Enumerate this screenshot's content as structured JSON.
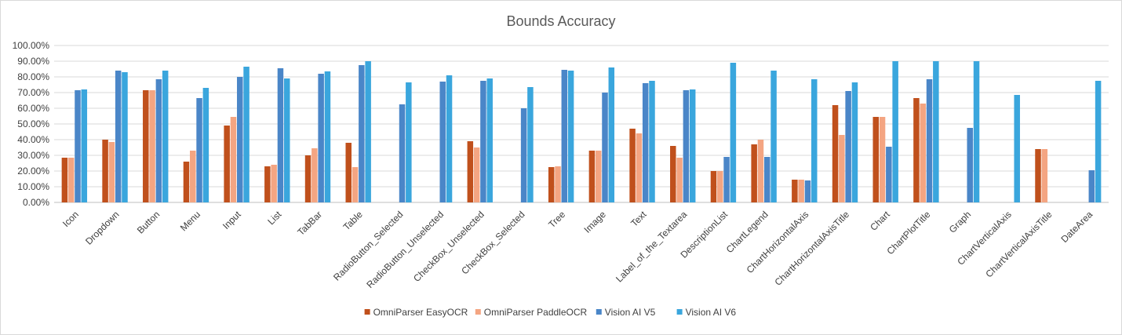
{
  "chart_data": {
    "type": "bar",
    "title": "Bounds Accuracy",
    "xlabel": "",
    "ylabel": "",
    "ylim": [
      0,
      100
    ],
    "yticks": [
      "0.00%",
      "10.00%",
      "20.00%",
      "30.00%",
      "40.00%",
      "50.00%",
      "60.00%",
      "70.00%",
      "80.00%",
      "90.00%",
      "100.00%"
    ],
    "grid": true,
    "legend_position": "bottom",
    "categories": [
      "Icon",
      "Dropdown",
      "Button",
      "Menu",
      "Input",
      "List",
      "TabBar",
      "Table",
      "RadioButton_Selected",
      "RadioButton_Unselected",
      "CheckBox_Unselected",
      "CheckBox_Selected",
      "Tree",
      "Image",
      "Text",
      "Label_of_the_Textarea",
      "DescriptionList",
      "ChartLegend",
      "ChartHorizontalAxis",
      "ChartHorizontalAxisTitle",
      "Chart",
      "ChartPlotTitle",
      "Graph",
      "ChartVerticalAxis",
      "ChartVerticalAxisTitle",
      "DateArea"
    ],
    "series": [
      {
        "name": "OmniParser EasyOCR",
        "color": "#c0501c",
        "values": [
          28.5,
          40,
          71.5,
          26,
          49,
          23,
          30,
          38,
          0,
          0,
          39,
          0,
          22.5,
          33,
          47,
          36,
          20,
          37,
          14.5,
          62,
          54.5,
          66.5,
          0,
          0,
          34,
          0
        ]
      },
      {
        "name": "OmniParser PaddleOCR",
        "color": "#f4a582",
        "values": [
          28.5,
          38.5,
          71.5,
          33,
          54.5,
          24,
          34.5,
          22.5,
          0,
          0,
          35,
          0,
          23,
          33,
          44,
          28.5,
          20,
          40,
          14.5,
          43,
          54.5,
          63,
          0,
          0,
          34,
          0
        ]
      },
      {
        "name": "Vision AI V5",
        "color": "#4a86c8",
        "values": [
          71.5,
          84,
          78.5,
          66.5,
          80,
          85.5,
          82,
          87.5,
          62.5,
          77,
          77.5,
          60,
          84.5,
          70,
          76,
          71.5,
          29,
          29,
          14,
          71,
          35.5,
          78.5,
          47.5,
          0,
          0,
          20.5
        ]
      },
      {
        "name": "Vision AI V6",
        "color": "#3aa6dd",
        "values": [
          72,
          83,
          84,
          73,
          86.5,
          79,
          83.5,
          90,
          76.5,
          81,
          79,
          73.5,
          84,
          86,
          77.5,
          72,
          89,
          84,
          78.5,
          76.5,
          90,
          90,
          90,
          68.5,
          0,
          77.5
        ]
      }
    ]
  }
}
